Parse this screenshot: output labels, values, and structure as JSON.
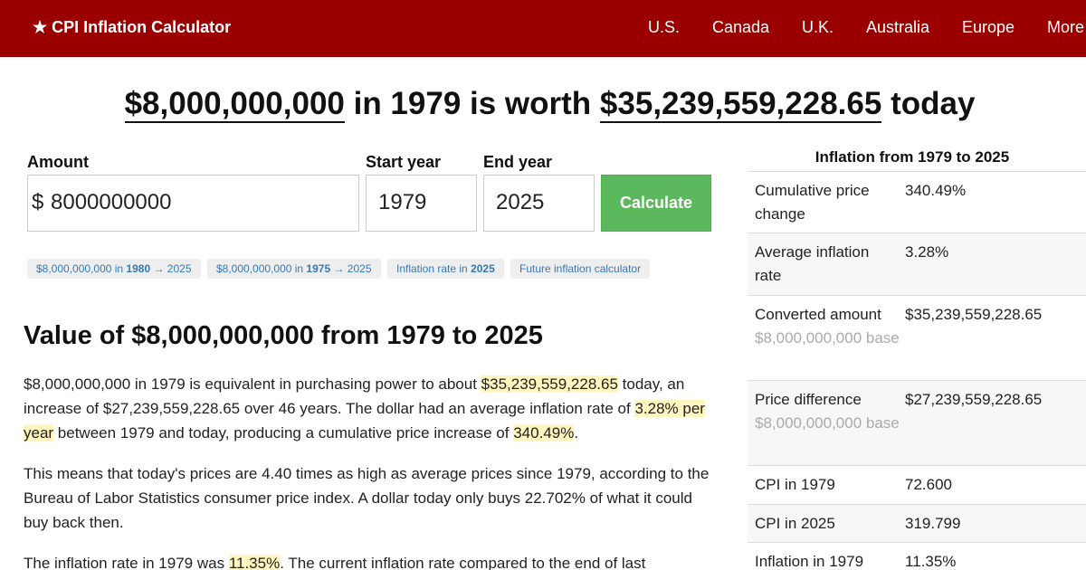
{
  "nav": {
    "brand": "★ CPI Inflation Calculator",
    "links": [
      "U.S.",
      "Canada",
      "U.K.",
      "Australia",
      "Europe",
      "More"
    ]
  },
  "headline": {
    "amount": "$8,000,000,000",
    "mid": " in 1979 is worth ",
    "result": "$35,239,559,228.65",
    "end": " today"
  },
  "form": {
    "amount_label": "Amount",
    "start_label": "Start year",
    "end_label": "End year",
    "currency_symbol": "$",
    "amount_value": "8000000000",
    "start_value": "1979",
    "end_value": "2025",
    "calculate": "Calculate"
  },
  "pills": [
    {
      "pre": "$8,000,000,000 in ",
      "bold": "1980",
      "post": " → 2025"
    },
    {
      "pre": "$8,000,000,000 in ",
      "bold": "1975",
      "post": " → 2025"
    },
    {
      "pre": "Inflation rate in ",
      "bold": "2025",
      "post": ""
    },
    {
      "pre": "Future inflation calculator",
      "bold": "",
      "post": ""
    }
  ],
  "content": {
    "heading": "Value of $8,000,000,000 from 1979 to 2025",
    "p1": {
      "a": "$8,000,000,000 in 1979 is equivalent in purchasing power to about ",
      "h1": "$35,239,559,228.65",
      "b": " today, an increase of $27,239,559,228.65 over 46 years. The dollar had an average inflation rate of ",
      "h2": "3.28% per year",
      "c": " between 1979 and today, producing a cumulative price increase of ",
      "h3": "340.49%",
      "d": "."
    },
    "p2": "This means that today's prices are 4.40 times as high as average prices since 1979, according to the Bureau of Labor Statistics consumer price index. A dollar today only buys 22.702% of what it could buy back then.",
    "p3": {
      "a": "The inflation rate in 1979 was ",
      "h1": "11.35%",
      "b": ". The current inflation rate compared to the end of last"
    }
  },
  "side": {
    "title": "Inflation from 1979 to 2025",
    "rows": [
      {
        "key": "Cumulative price change",
        "sub": "",
        "value": "340.49%"
      },
      {
        "key": "Average inflation rate",
        "sub": "",
        "value": "3.28%"
      },
      {
        "key": "Converted amount",
        "sub": "$8,000,000,000 base",
        "value": "$35,239,559,228.65"
      },
      {
        "key": "Price difference",
        "sub": "$8,000,000,000 base",
        "value": "$27,239,559,228.65"
      },
      {
        "key": "CPI in 1979",
        "sub": "",
        "value": "72.600"
      },
      {
        "key": "CPI in 2025",
        "sub": "",
        "value": "319.799"
      },
      {
        "key": "Inflation in 1979",
        "sub": "",
        "value": "11.35%"
      }
    ]
  },
  "colors": {
    "topbar": "#9b0000",
    "calculate_button": "#5cb85c",
    "highlight": "#fff5bf",
    "link": "#337ab7"
  }
}
